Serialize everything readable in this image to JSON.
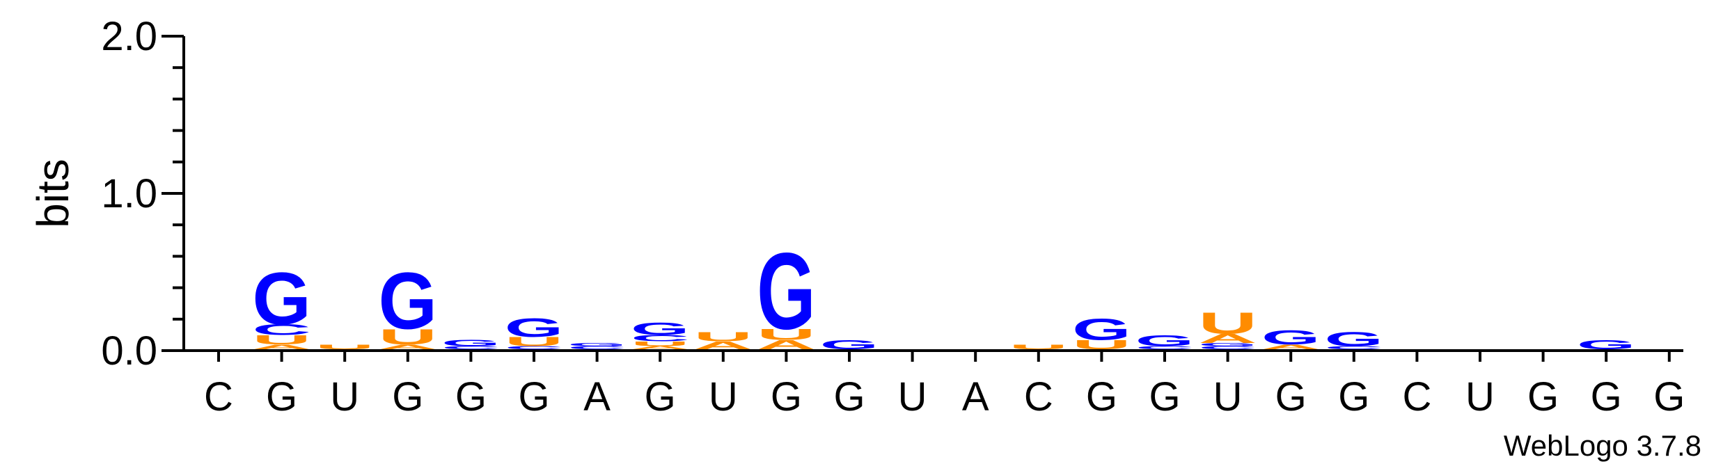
{
  "chart_data": {
    "type": "sequence-logo",
    "ylabel": "bits",
    "ylim": [
      0,
      2.0
    ],
    "yticks": [
      "0.0",
      "1.0",
      "2.0"
    ],
    "credit": "WebLogo 3.7.8",
    "colors": {
      "G": "#0000ff",
      "C": "#0000ff",
      "U": "#ff8c00",
      "A": "#ff8c00"
    },
    "positions": [
      {
        "label": "C",
        "stack": []
      },
      {
        "label": "G",
        "stack": [
          {
            "l": "A",
            "h": 0.03
          },
          {
            "l": "U",
            "h": 0.06
          },
          {
            "l": "C",
            "h": 0.07
          },
          {
            "l": "G",
            "h": 0.34
          }
        ]
      },
      {
        "label": "U",
        "stack": [
          {
            "l": "U",
            "h": 0.03
          }
        ]
      },
      {
        "label": "G",
        "stack": [
          {
            "l": "A",
            "h": 0.03
          },
          {
            "l": "U",
            "h": 0.1
          },
          {
            "l": "G",
            "h": 0.37
          }
        ]
      },
      {
        "label": "G",
        "stack": [
          {
            "l": "C",
            "h": 0.02
          },
          {
            "l": "G",
            "h": 0.04
          }
        ]
      },
      {
        "label": "G",
        "stack": [
          {
            "l": "C",
            "h": 0.02
          },
          {
            "l": "U",
            "h": 0.06
          },
          {
            "l": "G",
            "h": 0.12
          }
        ]
      },
      {
        "label": "A",
        "stack": [
          {
            "l": "C",
            "h": 0.02
          },
          {
            "l": "G",
            "h": 0.02
          }
        ]
      },
      {
        "label": "G",
        "stack": [
          {
            "l": "A",
            "h": 0.02
          },
          {
            "l": "U",
            "h": 0.03
          },
          {
            "l": "C",
            "h": 0.04
          },
          {
            "l": "G",
            "h": 0.08
          }
        ]
      },
      {
        "label": "U",
        "stack": [
          {
            "l": "A",
            "h": 0.05
          },
          {
            "l": "U",
            "h": 0.06
          }
        ]
      },
      {
        "label": "G",
        "stack": [
          {
            "l": "A",
            "h": 0.06
          },
          {
            "l": "U",
            "h": 0.07
          },
          {
            "l": "G",
            "h": 0.5
          }
        ]
      },
      {
        "label": "G",
        "stack": [
          {
            "l": "G",
            "h": 0.06
          }
        ]
      },
      {
        "label": "U",
        "stack": []
      },
      {
        "label": "A",
        "stack": []
      },
      {
        "label": "C",
        "stack": [
          {
            "l": "U",
            "h": 0.03
          }
        ]
      },
      {
        "label": "G",
        "stack": [
          {
            "l": "U",
            "h": 0.06
          },
          {
            "l": "G",
            "h": 0.14
          }
        ]
      },
      {
        "label": "G",
        "stack": [
          {
            "l": "C",
            "h": 0.02
          },
          {
            "l": "G",
            "h": 0.07
          }
        ]
      },
      {
        "label": "U",
        "stack": [
          {
            "l": "C",
            "h": 0.02
          },
          {
            "l": "G",
            "h": 0.02
          },
          {
            "l": "A",
            "h": 0.06
          },
          {
            "l": "U",
            "h": 0.14
          }
        ]
      },
      {
        "label": "G",
        "stack": [
          {
            "l": "A",
            "h": 0.03
          },
          {
            "l": "G",
            "h": 0.09
          }
        ]
      },
      {
        "label": "G",
        "stack": [
          {
            "l": "C",
            "h": 0.02
          },
          {
            "l": "G",
            "h": 0.09
          }
        ]
      },
      {
        "label": "C",
        "stack": []
      },
      {
        "label": "U",
        "stack": []
      },
      {
        "label": "G",
        "stack": []
      },
      {
        "label": "G",
        "stack": [
          {
            "l": "G",
            "h": 0.06
          }
        ]
      },
      {
        "label": "G",
        "stack": []
      }
    ]
  }
}
